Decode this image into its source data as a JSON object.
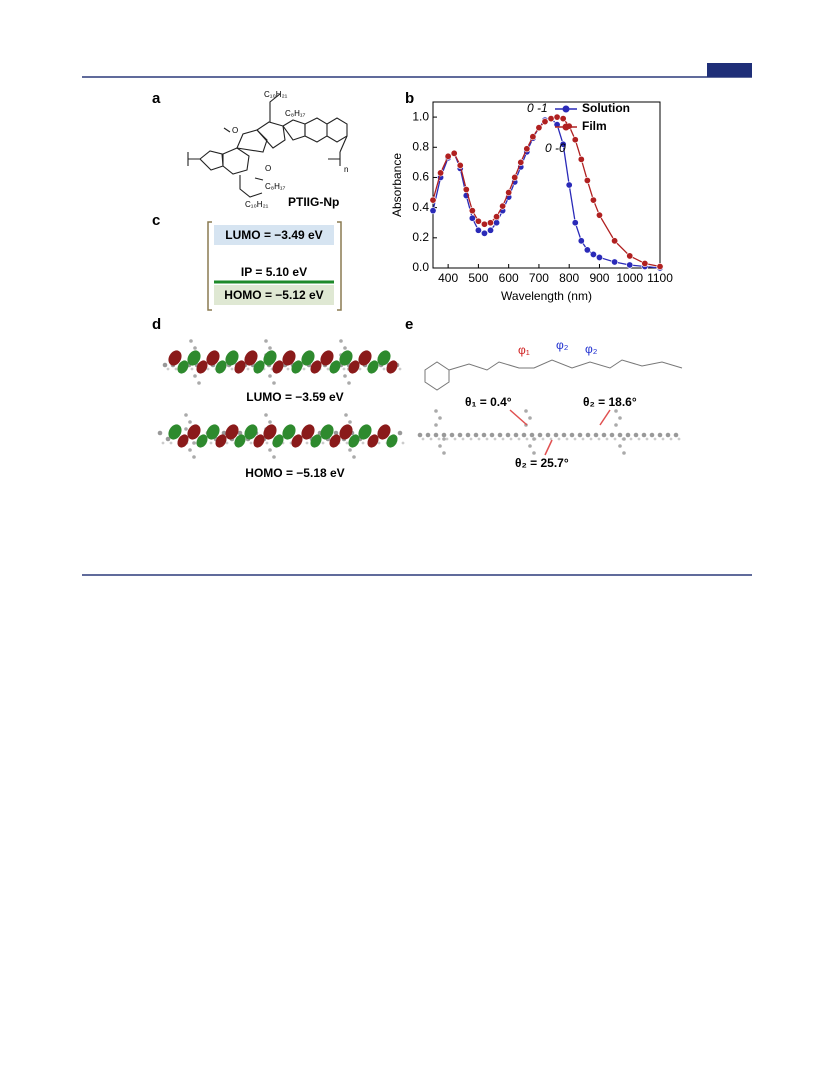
{
  "panel_labels": [
    "a",
    "b",
    "c",
    "d",
    "e"
  ],
  "structure": {
    "name": "PTIIG-Np",
    "repeat": "n",
    "side_chains": [
      "C₁₀H₂₁",
      "C₈H₁₇",
      "C₈H₁₇",
      "C₁₀H₂₁"
    ]
  },
  "energy_levels": {
    "lumo": "LUMO = −3.49 eV",
    "ip": "IP = 5.10 eV",
    "homo": "HOMO = −5.12 eV"
  },
  "orbitals": {
    "lumo": "LUMO = −3.59 eV",
    "homo": "HOMO = −5.18 eV"
  },
  "torsions": {
    "phi": [
      "φ₁",
      "φ₂",
      "φ₂"
    ],
    "theta": [
      "θ₁ = 0.4°",
      "θ₂ = 18.6°",
      "θ₂ = 25.7°"
    ]
  },
  "chart_data": {
    "type": "line",
    "xlabel": "Wavelength (nm)",
    "ylabel": "Absorbance",
    "annotations": [
      "0 -1",
      "0 -0"
    ],
    "legend": "upper right",
    "x": [
      350,
      375,
      400,
      420,
      440,
      460,
      480,
      500,
      520,
      540,
      560,
      580,
      600,
      620,
      640,
      660,
      680,
      700,
      720,
      740,
      760,
      780,
      800,
      820,
      840,
      860,
      880,
      900,
      950,
      1000,
      1050,
      1100
    ],
    "series": [
      {
        "name": "Solution",
        "color": "#2a2ab8",
        "values": [
          0.38,
          0.6,
          0.73,
          0.76,
          0.66,
          0.48,
          0.33,
          0.25,
          0.23,
          0.25,
          0.3,
          0.38,
          0.47,
          0.57,
          0.67,
          0.77,
          0.86,
          0.93,
          0.98,
          0.99,
          0.95,
          0.82,
          0.55,
          0.3,
          0.18,
          0.12,
          0.09,
          0.07,
          0.04,
          0.02,
          0.01,
          0.0
        ]
      },
      {
        "name": "Film",
        "color": "#b02020",
        "values": [
          0.45,
          0.63,
          0.74,
          0.76,
          0.68,
          0.52,
          0.38,
          0.31,
          0.29,
          0.3,
          0.34,
          0.41,
          0.5,
          0.6,
          0.7,
          0.79,
          0.87,
          0.93,
          0.97,
          0.99,
          1.0,
          0.99,
          0.94,
          0.85,
          0.72,
          0.58,
          0.45,
          0.35,
          0.18,
          0.08,
          0.03,
          0.01
        ]
      }
    ],
    "xlim": [
      350,
      1100
    ],
    "xticks": [
      400,
      500,
      600,
      700,
      800,
      900,
      1000,
      1100
    ],
    "ylim": [
      0,
      1.1
    ],
    "yticks": [
      {
        "value": 0,
        "label": "0.0"
      },
      0.2,
      0.4,
      0.6,
      0.8,
      {
        "value": 1,
        "label": "1.0"
      }
    ]
  }
}
